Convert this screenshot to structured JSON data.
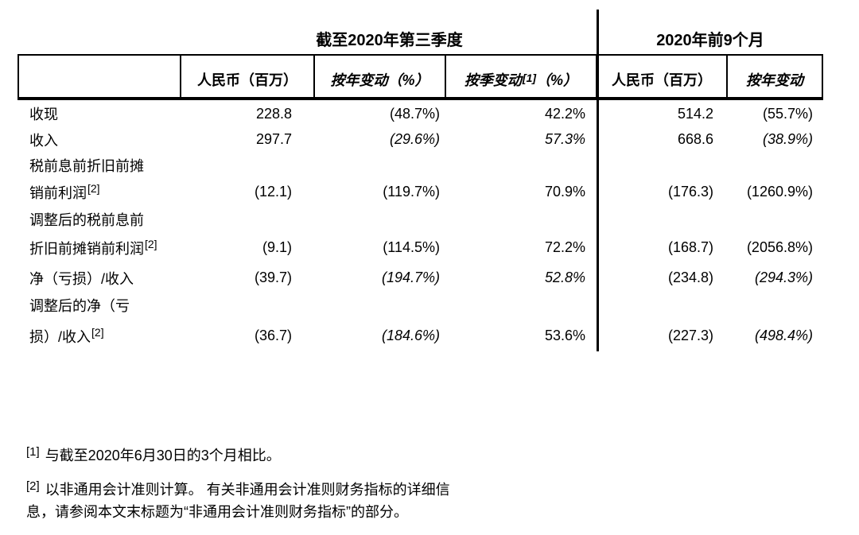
{
  "colors": {
    "background": "#ffffff",
    "text": "#000000",
    "border": "#000000"
  },
  "section_headers": {
    "q3": "截至2020年第三季度",
    "nine_months": "2020年前9个月"
  },
  "table": {
    "columns": [
      {
        "label": "",
        "italic": false
      },
      {
        "label": "人民币（百万）",
        "italic": false
      },
      {
        "label": "按年变动（%）",
        "italic": true
      },
      {
        "label": "按季变动",
        "sup": "[1]",
        "suffix": "（%）",
        "italic": true
      },
      {
        "label": "人民币（百万）",
        "italic": false
      },
      {
        "label": "按年变动",
        "italic": true
      }
    ],
    "rows": [
      {
        "label": "收现",
        "values": [
          "228.8",
          "(48.7%)",
          "42.2%",
          "514.2",
          "(55.7%)"
        ],
        "italics": [
          false,
          false,
          false,
          false,
          false
        ]
      },
      {
        "label": "收入",
        "values": [
          "297.7",
          "(29.6%)",
          "57.3%",
          "668.6",
          "(38.9%)"
        ],
        "italics": [
          false,
          true,
          true,
          false,
          true
        ]
      },
      {
        "label": "税前息前折旧前摊",
        "values": null
      },
      {
        "label": "销前利润",
        "sup": "[2]",
        "values": [
          "(12.1)",
          "(119.7%)",
          "70.9%",
          "(176.3)",
          "(1260.9%)"
        ],
        "italics": [
          false,
          false,
          false,
          false,
          false
        ]
      },
      {
        "label": "调整后的税前息前",
        "values": null
      },
      {
        "label": "折旧前摊销前利润",
        "sup": "[2]",
        "values": [
          "(9.1)",
          "(114.5%)",
          "72.2%",
          "(168.7)",
          "(2056.8%)"
        ],
        "italics": [
          false,
          false,
          false,
          false,
          false
        ]
      },
      {
        "label": "净（亏损）/收入",
        "values": [
          "(39.7)",
          "(194.7%)",
          "52.8%",
          "(234.8)",
          "(294.3%)"
        ],
        "italics": [
          false,
          true,
          true,
          false,
          true
        ]
      },
      {
        "label": "调整后的净（亏",
        "values": null
      },
      {
        "label": "损）/收入",
        "sup": "[2]",
        "values": [
          "(36.7)",
          "(184.6%)",
          "53.6%",
          "(227.3)",
          "(498.4%)"
        ],
        "italics": [
          false,
          true,
          false,
          false,
          true
        ]
      }
    ]
  },
  "footnotes": [
    {
      "marker": "[1]",
      "text": "与截至2020年6月30日的3个月相比。"
    },
    {
      "marker": "[2]",
      "text": "以非通用会计准则计算。 有关非通用会计准则财务指标的详细信\n息，请参阅本文末标题为“非通用会计准则财务指标”的部分。"
    }
  ]
}
